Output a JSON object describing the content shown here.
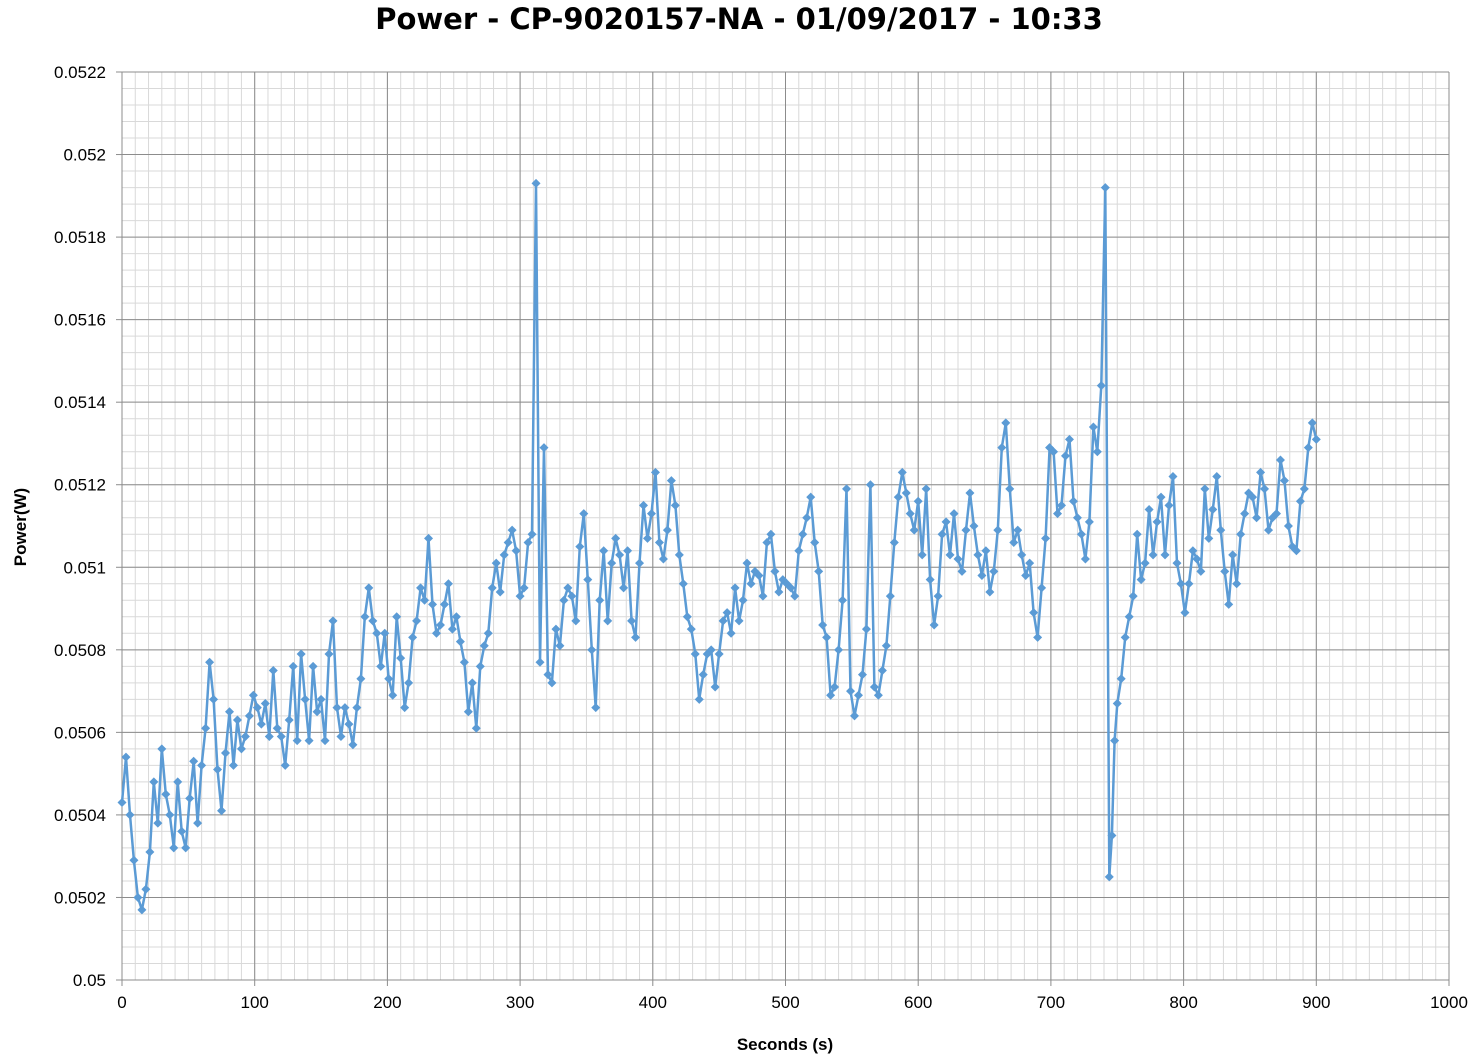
{
  "chart_data": {
    "type": "line",
    "title": "Power - CP-9020157-NA - 01/09/2017 - 10:33",
    "xlabel": "Seconds (s)",
    "ylabel": "Power(W)",
    "xlim": [
      0,
      1000
    ],
    "ylim": [
      0.05,
      0.0522
    ],
    "x_ticks": [
      0,
      100,
      200,
      300,
      400,
      500,
      600,
      700,
      800,
      900,
      1000
    ],
    "x_tick_labels": [
      "0",
      "100",
      "200",
      "300",
      "400",
      "500",
      "600",
      "700",
      "800",
      "900",
      "1000"
    ],
    "y_ticks": [
      0.05,
      0.0502,
      0.0504,
      0.0506,
      0.0508,
      0.051,
      0.0512,
      0.0514,
      0.0516,
      0.0518,
      0.052,
      0.0522
    ],
    "y_tick_labels": [
      "0.05",
      "0.0502",
      "0.0504",
      "0.0506",
      "0.0508",
      "0.051",
      "0.0512",
      "0.0514",
      "0.0516",
      "0.0518",
      "0.052",
      "0.0522"
    ],
    "grid": "major and minor",
    "legend": "none",
    "marker": "diamond",
    "line_color": "#5B9BD5",
    "series": [
      {
        "x": [
          0,
          3,
          6,
          9,
          12,
          15,
          18,
          21,
          24,
          27,
          30,
          33,
          36,
          39,
          42,
          45,
          48,
          51,
          54,
          57,
          60,
          63,
          66,
          69,
          72,
          75,
          78,
          81,
          84,
          87,
          90,
          93,
          96,
          99,
          102,
          105,
          108,
          111,
          114,
          117,
          120,
          123,
          126,
          129,
          132,
          135,
          138,
          141,
          144,
          147,
          150,
          153,
          156,
          159,
          162,
          165,
          168,
          171,
          174,
          177,
          180,
          183,
          186,
          189,
          192,
          195,
          198,
          201,
          204,
          207,
          210,
          213,
          216,
          219,
          222,
          225,
          228,
          231,
          234,
          237,
          240,
          243,
          246,
          249,
          252,
          255,
          258,
          261,
          264,
          267,
          270,
          273,
          276,
          279,
          282,
          285,
          288,
          291,
          294,
          297,
          300,
          303,
          306,
          309,
          312,
          315,
          318,
          321,
          324,
          327,
          330,
          333,
          336,
          339,
          342,
          345,
          348,
          351,
          354,
          357,
          360,
          363,
          366,
          369,
          372,
          375,
          378,
          381,
          384,
          387,
          390,
          393,
          396,
          399,
          402,
          405,
          408,
          411,
          414,
          417,
          420,
          423,
          426,
          429,
          432,
          435,
          438,
          441,
          444,
          447,
          450,
          453,
          456,
          459,
          462,
          465,
          468,
          471,
          474,
          477,
          480,
          483,
          486,
          489,
          492,
          495,
          498,
          501,
          504,
          507,
          510,
          513,
          516,
          519,
          522,
          525,
          528,
          531,
          534,
          537,
          540,
          543,
          546,
          549,
          552,
          555,
          558,
          561,
          564,
          567,
          570,
          573,
          576,
          579,
          582,
          585,
          588,
          591,
          594,
          597,
          600,
          603,
          606,
          609,
          612,
          615,
          618,
          621,
          624,
          627,
          630,
          633,
          636,
          639,
          642,
          645,
          648,
          651,
          654,
          657,
          660,
          663,
          666,
          669,
          672,
          675,
          678,
          681,
          684,
          687,
          690,
          693,
          696,
          699,
          702,
          705,
          708,
          711,
          714,
          717,
          720,
          723,
          726,
          729,
          732,
          735,
          738,
          741,
          744,
          746,
          748,
          750,
          753,
          756,
          759,
          762,
          765,
          768,
          771,
          774,
          777,
          780,
          783,
          786,
          789,
          792,
          795,
          798,
          801,
          804,
          807,
          810,
          813,
          816,
          819,
          822,
          825,
          828,
          831,
          834,
          837,
          840,
          843,
          846,
          849,
          852,
          855,
          858,
          861,
          864,
          867,
          870,
          873,
          876,
          879,
          882,
          885,
          888,
          891,
          894,
          897,
          900
        ],
        "y": [
          0.05043,
          0.05054,
          0.0504,
          0.05029,
          0.0502,
          0.05017,
          0.05022,
          0.05031,
          0.05048,
          0.05038,
          0.05056,
          0.05045,
          0.0504,
          0.05032,
          0.05048,
          0.05036,
          0.05032,
          0.05044,
          0.05053,
          0.05038,
          0.05052,
          0.05061,
          0.05077,
          0.05068,
          0.05051,
          0.05041,
          0.05055,
          0.05065,
          0.05052,
          0.05063,
          0.05056,
          0.05059,
          0.05064,
          0.05069,
          0.05066,
          0.05062,
          0.05067,
          0.05059,
          0.05075,
          0.05061,
          0.05059,
          0.05052,
          0.05063,
          0.05076,
          0.05058,
          0.05079,
          0.05068,
          0.05058,
          0.05076,
          0.05065,
          0.05068,
          0.05058,
          0.05079,
          0.05087,
          0.05066,
          0.05059,
          0.05066,
          0.05062,
          0.05057,
          0.05066,
          0.05073,
          0.05088,
          0.05095,
          0.05087,
          0.05084,
          0.05076,
          0.05084,
          0.05073,
          0.05069,
          0.05088,
          0.05078,
          0.05066,
          0.05072,
          0.05083,
          0.05087,
          0.05095,
          0.05092,
          0.05107,
          0.05091,
          0.05084,
          0.05086,
          0.05091,
          0.05096,
          0.05085,
          0.05088,
          0.05082,
          0.05077,
          0.05065,
          0.05072,
          0.05061,
          0.05076,
          0.05081,
          0.05084,
          0.05095,
          0.05101,
          0.05094,
          0.05103,
          0.05106,
          0.05109,
          0.05104,
          0.05093,
          0.05095,
          0.05106,
          0.05108,
          0.05193,
          0.05077,
          0.05129,
          0.05074,
          0.05072,
          0.05085,
          0.05081,
          0.05092,
          0.05095,
          0.05093,
          0.05087,
          0.05105,
          0.05113,
          0.05097,
          0.0508,
          0.05066,
          0.05092,
          0.05104,
          0.05087,
          0.05101,
          0.05107,
          0.05103,
          0.05095,
          0.05104,
          0.05087,
          0.05083,
          0.05101,
          0.05115,
          0.05107,
          0.05113,
          0.05123,
          0.05106,
          0.05102,
          0.05109,
          0.05121,
          0.05115,
          0.05103,
          0.05096,
          0.05088,
          0.05085,
          0.05079,
          0.05068,
          0.05074,
          0.05079,
          0.0508,
          0.05071,
          0.05079,
          0.05087,
          0.05089,
          0.05084,
          0.05095,
          0.05087,
          0.05092,
          0.05101,
          0.05096,
          0.05099,
          0.05098,
          0.05093,
          0.05106,
          0.05108,
          0.05099,
          0.05094,
          0.05097,
          0.05096,
          0.05095,
          0.05093,
          0.05104,
          0.05108,
          0.05112,
          0.05117,
          0.05106,
          0.05099,
          0.05086,
          0.05083,
          0.05069,
          0.05071,
          0.0508,
          0.05092,
          0.05119,
          0.0507,
          0.05064,
          0.05069,
          0.05074,
          0.05085,
          0.0512,
          0.05071,
          0.05069,
          0.05075,
          0.05081,
          0.05093,
          0.05106,
          0.05117,
          0.05123,
          0.05118,
          0.05113,
          0.05109,
          0.05116,
          0.05103,
          0.05119,
          0.05097,
          0.05086,
          0.05093,
          0.05108,
          0.05111,
          0.05103,
          0.05113,
          0.05102,
          0.05099,
          0.05109,
          0.05118,
          0.0511,
          0.05103,
          0.05098,
          0.05104,
          0.05094,
          0.05099,
          0.05109,
          0.05129,
          0.05135,
          0.05119,
          0.05106,
          0.05109,
          0.05103,
          0.05098,
          0.05101,
          0.05089,
          0.05083,
          0.05095,
          0.05107,
          0.05129,
          0.05128,
          0.05113,
          0.05115,
          0.05127,
          0.05131,
          0.05116,
          0.05112,
          0.05108,
          0.05102,
          0.05111,
          0.05134,
          0.05128,
          0.05144,
          0.05192,
          0.05025,
          0.05035,
          0.05058,
          0.05067,
          0.05073,
          0.05083,
          0.05088,
          0.05093,
          0.05108,
          0.05097,
          0.05101,
          0.05114,
          0.05103,
          0.05111,
          0.05117,
          0.05103,
          0.05115,
          0.05122,
          0.05101,
          0.05096,
          0.05089,
          0.05096,
          0.05104,
          0.05102,
          0.05099,
          0.05119,
          0.05107,
          0.05114,
          0.05122,
          0.05109,
          0.05099,
          0.05091,
          0.05103,
          0.05096,
          0.05108,
          0.05113,
          0.05118,
          0.05117,
          0.05112,
          0.05123,
          0.05119,
          0.05109,
          0.05112,
          0.05113,
          0.05126,
          0.05121,
          0.0511,
          0.05105,
          0.05104,
          0.05116,
          0.05119,
          0.05129,
          0.05135,
          0.05131
        ]
      }
    ]
  }
}
